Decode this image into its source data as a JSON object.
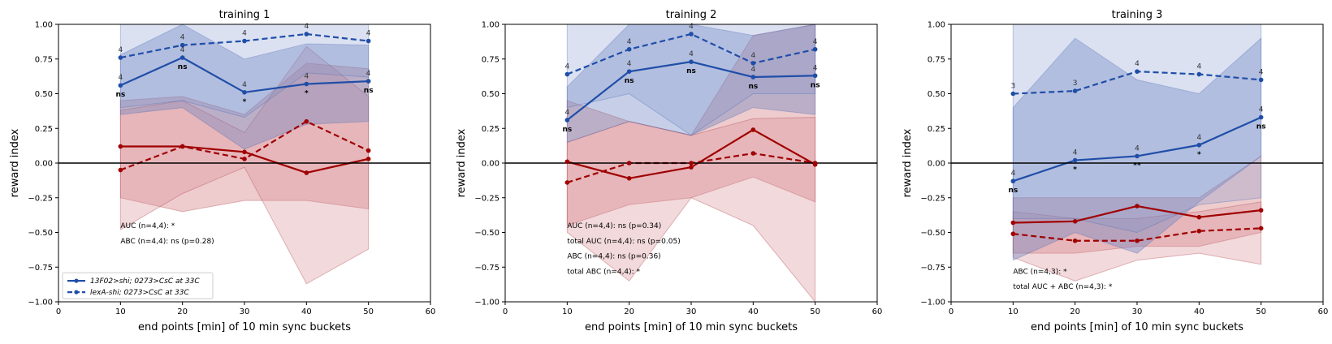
{
  "chart_data": [
    {
      "type": "line",
      "title": "training 1",
      "xlabel": "end points [min] of 10 min sync buckets",
      "ylabel": "reward index",
      "xlim": [
        0,
        60
      ],
      "ylim": [
        -1.0,
        1.0
      ],
      "xticks": [
        "0",
        "10",
        "20",
        "30",
        "40",
        "50",
        "60"
      ],
      "yticks": [
        "1.00",
        "0.75",
        "0.50",
        "0.25",
        "0.00",
        "−0.25",
        "−0.50",
        "−0.75",
        "−1.00"
      ],
      "x": [
        10,
        20,
        30,
        40,
        50
      ],
      "series": [
        {
          "name": "13F02>shi; 0273>CsC at 33C",
          "color": "#1f4ea8",
          "dash": false,
          "values": [
            0.56,
            0.76,
            0.51,
            0.57,
            0.59
          ],
          "ci_lo": [
            0.35,
            0.4,
            0.1,
            0.28,
            0.3
          ],
          "ci_hi": [
            0.78,
            1.0,
            0.75,
            0.86,
            0.85
          ],
          "n_labels": [
            "4",
            "4",
            "4",
            "4",
            "4"
          ],
          "sig_labels": [
            "ns",
            "ns",
            "*",
            "*",
            "ns"
          ]
        },
        {
          "name": "lexA-shi; 0273>CsC at 33C",
          "color": "#1f4ea8",
          "dash": true,
          "values": [
            0.76,
            0.85,
            0.88,
            0.93,
            0.88
          ],
          "ci_lo": [
            0.4,
            0.45,
            0.33,
            0.65,
            0.62
          ],
          "ci_hi": [
            1.0,
            1.0,
            1.0,
            1.0,
            1.0
          ],
          "n_labels": [
            "4",
            "4",
            "4",
            "4",
            "4"
          ],
          "sig_labels": []
        },
        {
          "name": "",
          "color": "#a00000",
          "dash": false,
          "values": [
            0.12,
            0.12,
            0.08,
            -0.07,
            0.03
          ],
          "ci_lo": [
            -0.25,
            -0.35,
            -0.27,
            -0.27,
            -0.33
          ],
          "ci_hi": [
            0.45,
            0.48,
            0.35,
            0.72,
            0.68
          ],
          "n_labels": [],
          "sig_labels": []
        },
        {
          "name": "",
          "color": "#a00000",
          "dash": true,
          "values": [
            -0.05,
            0.12,
            0.03,
            0.3,
            0.09
          ],
          "ci_lo": [
            -0.48,
            -0.22,
            -0.03,
            -0.87,
            -0.62
          ],
          "ci_hi": [
            0.38,
            0.45,
            0.22,
            0.84,
            0.48
          ],
          "n_labels": [],
          "sig_labels": []
        }
      ],
      "annotations": [
        "AUC (n=4,4): *",
        "ABC (n=4,4): ns (p=0.28)"
      ],
      "legend": "lower-left"
    },
    {
      "type": "line",
      "title": "training 2",
      "xlabel": "end points [min] of 10 min sync buckets",
      "ylabel": "reward index",
      "xlim": [
        0,
        60
      ],
      "ylim": [
        -1.0,
        1.0
      ],
      "xticks": [
        "0",
        "10",
        "20",
        "30",
        "40",
        "50",
        "60"
      ],
      "yticks": [
        "1.00",
        "0.75",
        "0.50",
        "0.25",
        "0.00",
        "−0.25",
        "−0.50",
        "−0.75",
        "−1.00"
      ],
      "x": [
        10,
        20,
        30,
        40,
        50
      ],
      "series": [
        {
          "name": "",
          "color": "#1f4ea8",
          "dash": false,
          "values": [
            0.31,
            0.66,
            0.73,
            0.62,
            0.63
          ],
          "ci_lo": [
            0.15,
            0.3,
            0.2,
            0.4,
            0.35
          ],
          "ci_hi": [
            0.55,
            1.0,
            1.0,
            0.92,
            1.0
          ],
          "n_labels": [
            "4",
            "4",
            "4",
            "4",
            "4"
          ],
          "sig_labels": [
            "ns",
            "ns",
            "ns",
            "ns",
            "ns"
          ]
        },
        {
          "name": "",
          "color": "#1f4ea8",
          "dash": true,
          "values": [
            0.64,
            0.82,
            0.93,
            0.72,
            0.82
          ],
          "ci_lo": [
            0.4,
            0.5,
            0.2,
            0.5,
            0.5
          ],
          "ci_hi": [
            1.0,
            1.0,
            1.0,
            1.0,
            1.0
          ],
          "n_labels": [
            "4",
            "4",
            "4",
            "4",
            "4"
          ],
          "sig_labels": []
        },
        {
          "name": "",
          "color": "#a00000",
          "dash": false,
          "values": [
            0.01,
            -0.11,
            -0.03,
            0.24,
            -0.01
          ],
          "ci_lo": [
            -0.45,
            -0.3,
            -0.25,
            -0.1,
            -0.28
          ],
          "ci_hi": [
            0.45,
            0.3,
            0.2,
            0.92,
            1.0
          ],
          "n_labels": [],
          "sig_labels": []
        },
        {
          "name": "",
          "color": "#a00000",
          "dash": true,
          "values": [
            -0.14,
            0.0,
            0.0,
            0.07,
            0.0
          ],
          "ci_lo": [
            -0.5,
            -0.85,
            -0.25,
            -0.45,
            -1.0
          ],
          "ci_hi": [
            0.15,
            0.3,
            0.2,
            0.32,
            0.33
          ],
          "n_labels": [],
          "sig_labels": []
        }
      ],
      "annotations": [
        "AUC (n=4,4): ns (p=0.34)",
        "total AUC (n=4,4): ns (p=0.05)",
        "ABC (n=4,4): ns (p=0.36)",
        "total ABC (n=4,4): *"
      ],
      "legend": "none"
    },
    {
      "type": "line",
      "title": "training 3",
      "xlabel": "end points [min] of 10 min sync buckets",
      "ylabel": "reward index",
      "xlim": [
        0,
        60
      ],
      "ylim": [
        -1.0,
        1.0
      ],
      "xticks": [
        "0",
        "10",
        "20",
        "30",
        "40",
        "50",
        "60"
      ],
      "yticks": [
        "1.00",
        "0.75",
        "0.50",
        "0.25",
        "0.00",
        "−0.25",
        "−0.50",
        "−0.75",
        "−1.00"
      ],
      "x": [
        10,
        20,
        30,
        40,
        50
      ],
      "series": [
        {
          "name": "",
          "color": "#1f4ea8",
          "dash": false,
          "values": [
            -0.13,
            0.02,
            0.05,
            0.13,
            0.33
          ],
          "ci_lo": [
            -0.7,
            -0.5,
            -0.65,
            -0.28,
            0.05
          ],
          "ci_hi": [
            0.4,
            0.9,
            0.6,
            0.5,
            0.9
          ],
          "n_labels": [
            "4",
            "4",
            "4",
            "4",
            "4"
          ],
          "sig_labels": [
            "ns",
            "*",
            "**",
            "*",
            "ns"
          ]
        },
        {
          "name": "",
          "color": "#1f4ea8",
          "dash": true,
          "values": [
            0.5,
            0.52,
            0.66,
            0.64,
            0.6
          ],
          "ci_lo": [
            -0.4,
            -0.4,
            -0.5,
            -0.3,
            -0.25
          ],
          "ci_hi": [
            1.0,
            1.0,
            1.0,
            1.0,
            1.0
          ],
          "n_labels": [
            "3",
            "3",
            "4",
            "4",
            "4"
          ],
          "sig_labels": []
        },
        {
          "name": "",
          "color": "#a00000",
          "dash": false,
          "values": [
            -0.43,
            -0.42,
            -0.31,
            -0.39,
            -0.34
          ],
          "ci_lo": [
            -0.65,
            -0.65,
            -0.6,
            -0.6,
            -0.5
          ],
          "ci_hi": [
            -0.25,
            -0.25,
            -0.25,
            -0.25,
            0.05
          ],
          "n_labels": [],
          "sig_labels": []
        },
        {
          "name": "",
          "color": "#a00000",
          "dash": true,
          "values": [
            -0.51,
            -0.56,
            -0.56,
            -0.49,
            -0.47
          ],
          "ci_lo": [
            -0.68,
            -0.85,
            -0.7,
            -0.65,
            -0.73
          ],
          "ci_hi": [
            -0.35,
            -0.4,
            -0.4,
            -0.35,
            -0.28
          ],
          "n_labels": [],
          "sig_labels": []
        }
      ],
      "annotations": [
        "ABC (n=4,3): *",
        "total AUC + ABC (n=4,3): *"
      ],
      "legend": "none"
    }
  ]
}
